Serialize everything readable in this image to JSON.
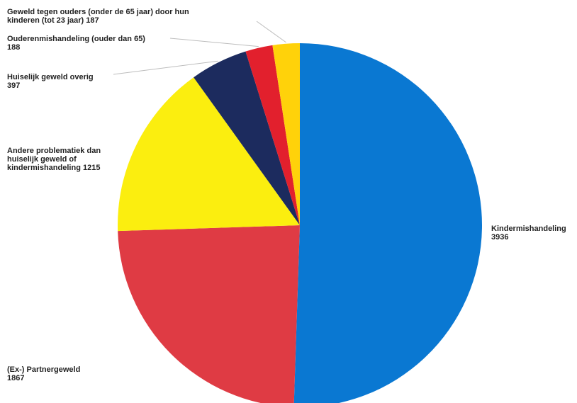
{
  "chart_data": {
    "type": "pie",
    "title": "",
    "slices": [
      {
        "label": "Kindermishandeling",
        "value": 3936,
        "color": "#0a78d2"
      },
      {
        "label": "(Ex-) Partnergeweld",
        "value": 1867,
        "color": "#df3b44"
      },
      {
        "label": "Andere problematiek dan huiselijk geweld of kindermishandeling",
        "value": 1215,
        "color": "#fbee0f"
      },
      {
        "label": "Huiselijk geweld overig",
        "value": 397,
        "color": "#1c2b5e"
      },
      {
        "label": "Ouderenmishandeling (ouder dan 65)",
        "value": 188,
        "color": "#e2202d"
      },
      {
        "label": "Geweld tegen ouders (onder de 65 jaar) door hun kinderen (tot 23 jaar)",
        "value": 187,
        "color": "#ffd20a"
      }
    ],
    "label_lines": [
      [
        "Kindermishandeling",
        "3936"
      ],
      [
        "(Ex-) Partnergeweld",
        "1867"
      ],
      [
        "Andere problematiek dan",
        "huiselijk geweld of",
        "kindermishandeling 1215"
      ],
      [
        "Huiselijk geweld overig",
        "397"
      ],
      [
        "Ouderenmishandeling (ouder dan 65)",
        "188"
      ],
      [
        "Geweld tegen ouders (onder de 65 jaar) door hun",
        "kinderen (tot 23 jaar) 187"
      ]
    ]
  }
}
